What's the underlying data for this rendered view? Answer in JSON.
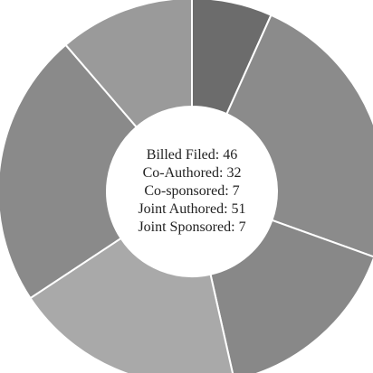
{
  "chart_data": {
    "type": "donut",
    "values": [
      6.7,
      23.8,
      16,
      19.2,
      23,
      11.3
    ],
    "colors": [
      "#6c6c6c",
      "#8b8b8b",
      "#888888",
      "#a9a9a9",
      "#8a8a8a",
      "#9a9a9a"
    ],
    "center_labels": [
      {
        "label": "Billed Filed:",
        "value": 46
      },
      {
        "label": "Co-Authored:",
        "value": 32
      },
      {
        "label": "Co-sponsored:",
        "value": 7
      },
      {
        "label": "Joint Authored:",
        "value": 51
      },
      {
        "label": "Joint Sponsored:",
        "value": 7
      }
    ]
  }
}
